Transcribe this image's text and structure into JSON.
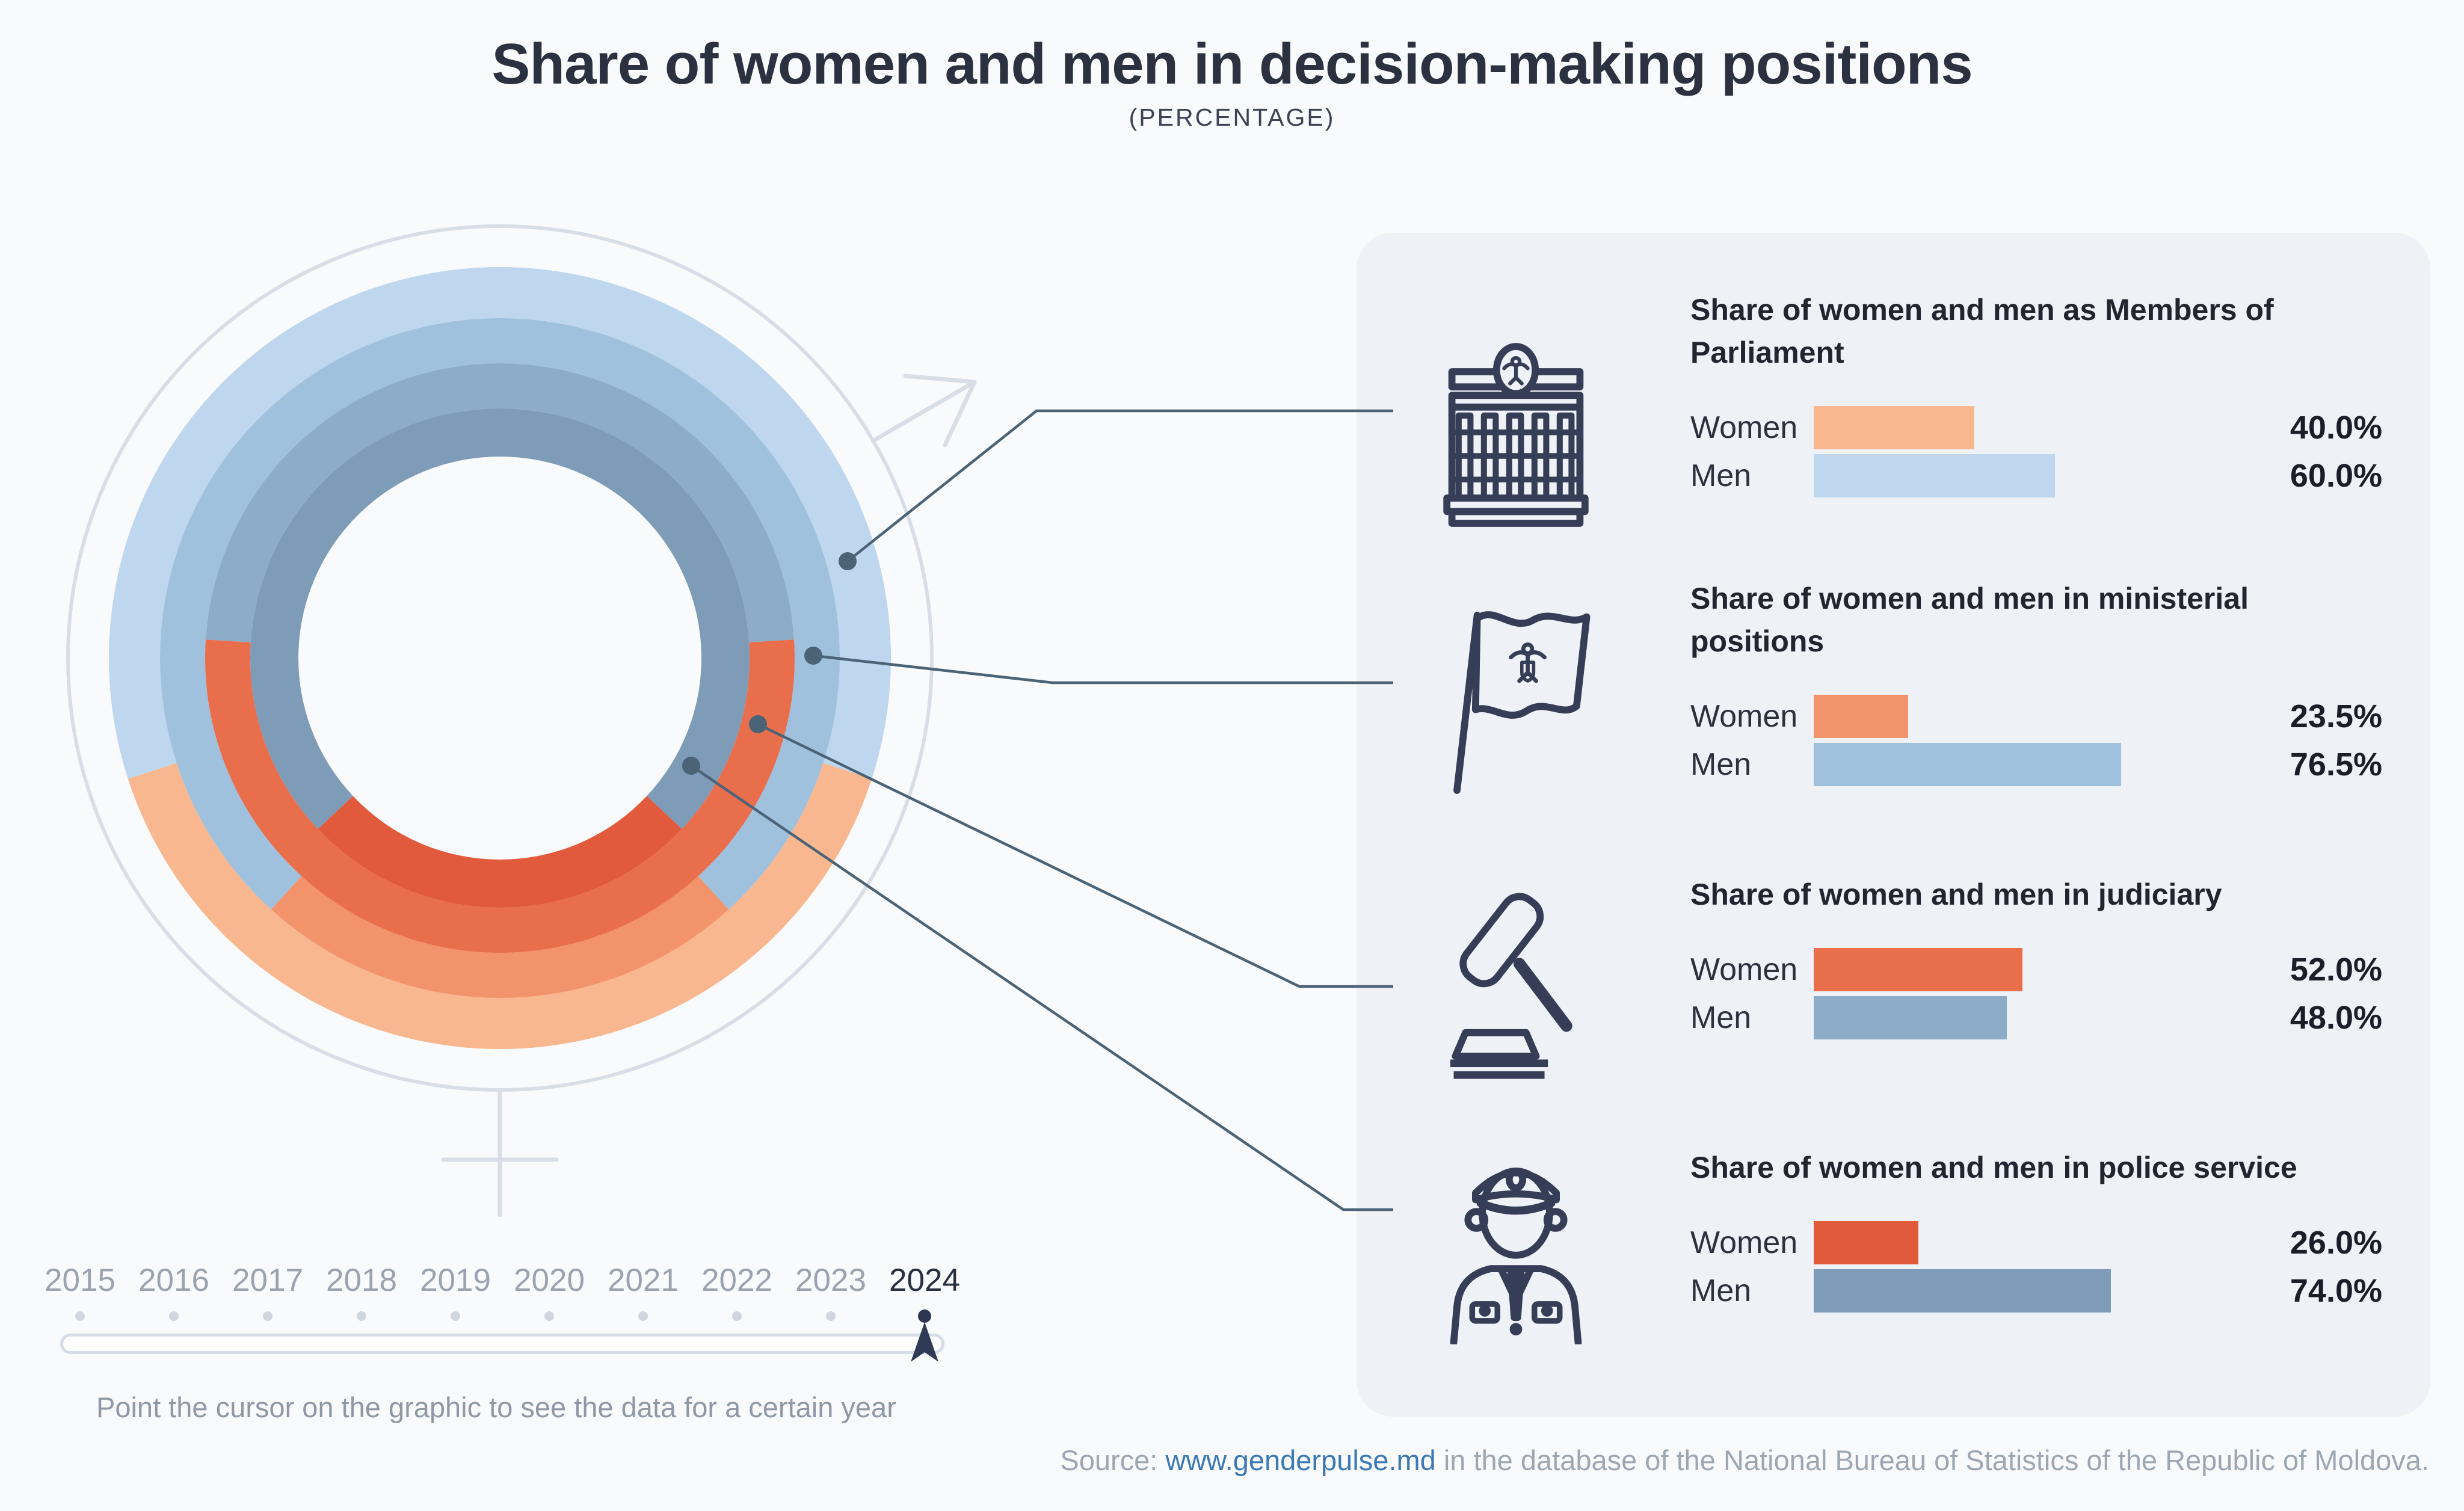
{
  "header": {
    "title": "Share of women and men in decision-making positions",
    "subtitle": "(PERCENTAGE)"
  },
  "chart_data": {
    "type": "pie",
    "subtype": "concentric-donut-rings",
    "description": "Four concentric donut rings; women share drawn as an arc centered at the bottom of each ring, men share fills the remainder. Outermost ring = Parliament, then ministerial, judiciary, innermost = police.",
    "rings_outer_to_inner": [
      {
        "category": "Members of Parliament",
        "women": 40.0,
        "men": 60.0,
        "women_color": "#f8b78e",
        "men_color": "#bfd7ee"
      },
      {
        "category": "Ministerial positions",
        "women": 23.5,
        "men": 76.5,
        "women_color": "#f2936b",
        "men_color": "#a0c1dd"
      },
      {
        "category": "Judiciary",
        "women": 52.0,
        "men": 48.0,
        "women_color": "#e96e4c",
        "men_color": "#8cacc8"
      },
      {
        "category": "Police service",
        "women": 26.0,
        "men": 74.0,
        "women_color": "#e25a3c",
        "men_color": "#7e9bb7"
      }
    ],
    "women_arc_centered_at": "bottom",
    "legend_position": "right-panels",
    "decoration": "combined female/male gender symbol drawn in light gray around the donut"
  },
  "panels": [
    {
      "key": "parliament",
      "icon": "parliament-building-icon",
      "heading": "Share of women and men as Members of Parliament",
      "women": {
        "label": "Women",
        "value": 40.0,
        "display": "40.0%",
        "color": "#f8b78e"
      },
      "men": {
        "label": "Men",
        "value": 60.0,
        "display": "60.0%",
        "color": "#bfd7ee"
      }
    },
    {
      "key": "ministerial",
      "icon": "moldova-flag-icon",
      "heading": "Share of women and men in ministerial positions",
      "women": {
        "label": "Women",
        "value": 23.5,
        "display": "23.5%",
        "color": "#f2936b"
      },
      "men": {
        "label": "Men",
        "value": 76.5,
        "display": "76.5%",
        "color": "#a0c1dd"
      }
    },
    {
      "key": "judiciary",
      "icon": "gavel-icon",
      "heading": "Share of women and men in judiciary",
      "women": {
        "label": "Women",
        "value": 52.0,
        "display": "52.0%",
        "color": "#e96e4c"
      },
      "men": {
        "label": "Men",
        "value": 48.0,
        "display": "48.0%",
        "color": "#8cacc8"
      }
    },
    {
      "key": "police",
      "icon": "police-officer-icon",
      "heading": "Share of women and men in police service",
      "women": {
        "label": "Women",
        "value": 26.0,
        "display": "26.0%",
        "color": "#e25a3c"
      },
      "men": {
        "label": "Men",
        "value": 74.0,
        "display": "74.0%",
        "color": "#7e9bb7"
      }
    }
  ],
  "timeline": {
    "years": [
      "2015",
      "2016",
      "2017",
      "2018",
      "2019",
      "2020",
      "2021",
      "2022",
      "2023",
      "2024"
    ],
    "active_year": "2024",
    "instruction": "Point the cursor on the graphic to see the data for a certain year"
  },
  "source": {
    "prefix": "Source: ",
    "link": "www.genderpulse.md",
    "suffix": " in the database of the National Bureau of Statistics of the Republic of Moldova.",
    "link_color": "#3c79b5"
  },
  "colors": {
    "page_background": "#f9fafc",
    "panel_background": "#eef1f6",
    "decoration_gray": "#d8dde6",
    "callout": "#4a6377",
    "dark_navy": "#353e56"
  }
}
